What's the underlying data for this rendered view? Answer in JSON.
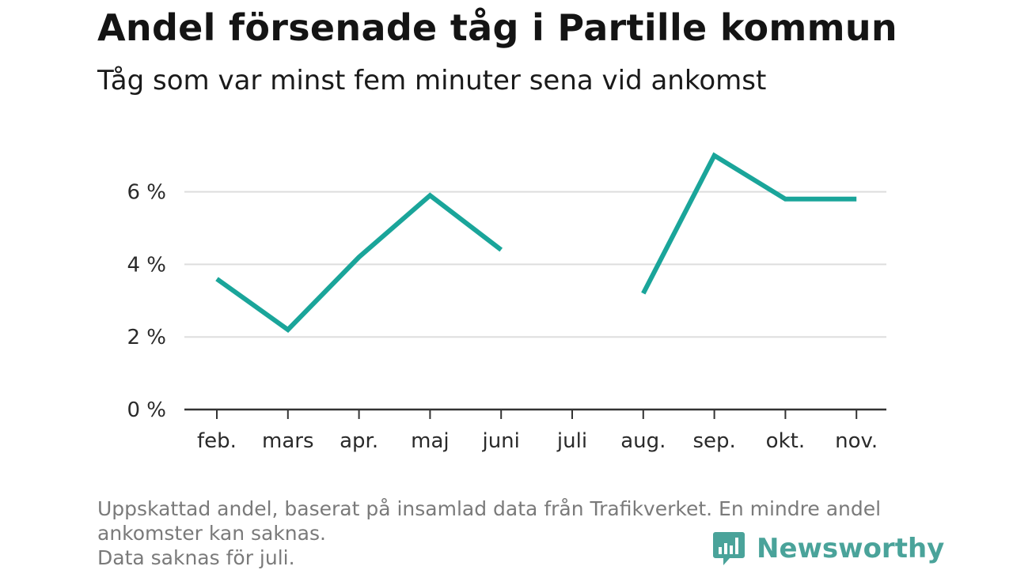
{
  "header": {
    "title": "Andel försenade tåg i Partille kommun",
    "subtitle": "Tåg som var minst fem minuter sena vid ankomst"
  },
  "footnote": {
    "line1": "Uppskattad andel, baserat på insamlad data från Trafikverket. En mindre andel",
    "line2": "ankomster kan saknas.",
    "line3": "Data saknas för juli."
  },
  "brand": {
    "name": "Newsworthy",
    "icon": "newsworthy-bar-chart-icon",
    "color": "#4aa39a"
  },
  "colors": {
    "line": "#1aa59a",
    "grid": "#dddddd",
    "axis": "#333333"
  },
  "chart_data": {
    "type": "line",
    "title": "Andel försenade tåg i Partille kommun",
    "subtitle": "Tåg som var minst fem minuter sena vid ankomst",
    "categories": [
      "feb.",
      "mars",
      "apr.",
      "maj",
      "juni",
      "juli",
      "aug.",
      "sep.",
      "okt.",
      "nov."
    ],
    "series": [
      {
        "values": [
          3.6,
          2.2,
          4.2,
          5.9,
          4.4,
          null,
          3.2,
          7.0,
          5.8,
          5.8
        ]
      }
    ],
    "ylim": [
      0,
      7
    ],
    "yticks": [
      0,
      2,
      4,
      6
    ],
    "ytick_labels": [
      "0 %",
      "2 %",
      "4 %",
      "6 %"
    ],
    "xlabel": "",
    "ylabel": "",
    "grid": true
  }
}
